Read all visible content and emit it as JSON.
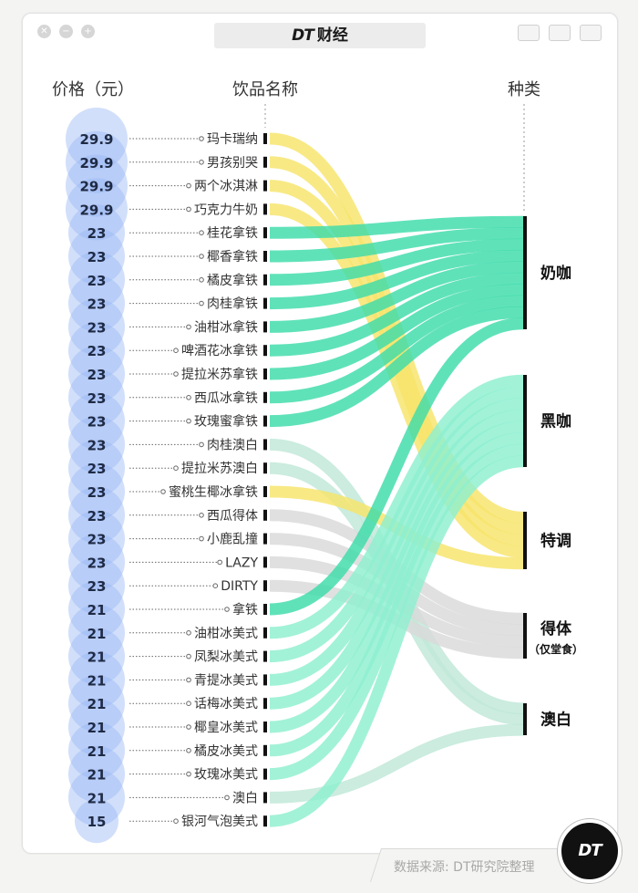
{
  "header": {
    "brand_logo": "DT",
    "brand_name": "财经"
  },
  "columns": {
    "price": "价格（元）",
    "drink": "饮品名称",
    "category": "种类"
  },
  "categories": [
    {
      "name": "奶咖",
      "note": "",
      "color": "#3ddcaa"
    },
    {
      "name": "黑咖",
      "note": "",
      "color": "#8eefd0"
    },
    {
      "name": "特调",
      "note": "",
      "color": "#f7e46a"
    },
    {
      "name": "得体",
      "note": "（仅堂食）",
      "color": "#d9d9d9"
    },
    {
      "name": "澳白",
      "note": "",
      "color": "#bfe8d8"
    }
  ],
  "drinks": [
    {
      "name": "玛卡瑞纳",
      "price": "29.9",
      "category": "特调"
    },
    {
      "name": "男孩别哭",
      "price": "29.9",
      "category": "特调"
    },
    {
      "name": "两个冰淇淋",
      "price": "29.9",
      "category": "特调"
    },
    {
      "name": "巧克力牛奶",
      "price": "29.9",
      "category": "特调"
    },
    {
      "name": "桂花拿铁",
      "price": "23",
      "category": "奶咖"
    },
    {
      "name": "椰香拿铁",
      "price": "23",
      "category": "奶咖"
    },
    {
      "name": "橘皮拿铁",
      "price": "23",
      "category": "奶咖"
    },
    {
      "name": "肉桂拿铁",
      "price": "23",
      "category": "奶咖"
    },
    {
      "name": "油柑冰拿铁",
      "price": "23",
      "category": "奶咖"
    },
    {
      "name": "啤酒花冰拿铁",
      "price": "23",
      "category": "奶咖"
    },
    {
      "name": "提拉米苏拿铁",
      "price": "23",
      "category": "奶咖"
    },
    {
      "name": "西瓜冰拿铁",
      "price": "23",
      "category": "奶咖"
    },
    {
      "name": "玫瑰蜜拿铁",
      "price": "23",
      "category": "奶咖"
    },
    {
      "name": "肉桂澳白",
      "price": "23",
      "category": "澳白"
    },
    {
      "name": "提拉米苏澳白",
      "price": "23",
      "category": "澳白"
    },
    {
      "name": "蜜桃生椰冰拿铁",
      "price": "23",
      "category": "特调"
    },
    {
      "name": "西瓜得体",
      "price": "23",
      "category": "得体"
    },
    {
      "name": "小鹿乱撞",
      "price": "23",
      "category": "得体"
    },
    {
      "name": "LAZY",
      "price": "23",
      "category": "得体"
    },
    {
      "name": "DIRTY",
      "price": "23",
      "category": "得体"
    },
    {
      "name": "拿铁",
      "price": "21",
      "category": "奶咖"
    },
    {
      "name": "油柑冰美式",
      "price": "21",
      "category": "黑咖"
    },
    {
      "name": "凤梨冰美式",
      "price": "21",
      "category": "黑咖"
    },
    {
      "name": "青提冰美式",
      "price": "21",
      "category": "黑咖"
    },
    {
      "name": "话梅冰美式",
      "price": "21",
      "category": "黑咖"
    },
    {
      "name": "椰皇冰美式",
      "price": "21",
      "category": "黑咖"
    },
    {
      "name": "橘皮冰美式",
      "price": "21",
      "category": "黑咖"
    },
    {
      "name": "玫瑰冰美式",
      "price": "21",
      "category": "黑咖"
    },
    {
      "name": "澳白",
      "price": "21",
      "category": "澳白"
    },
    {
      "name": "银河气泡美式",
      "price": "15",
      "category": "黑咖"
    }
  ],
  "footer": {
    "source": "数据来源: DT研究院整理",
    "badge": "DT"
  }
}
